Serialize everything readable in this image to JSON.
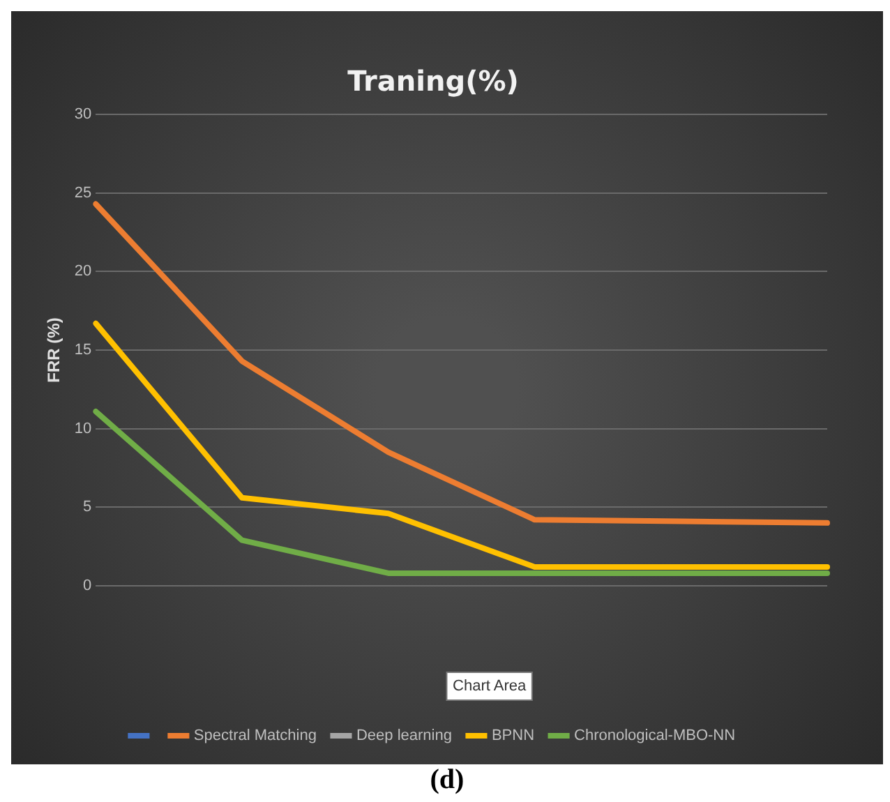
{
  "chart_data": {
    "type": "line",
    "title": "Traning(%)",
    "ylabel": "FRR (%)",
    "categories": [
      null,
      null,
      null,
      null,
      null,
      null
    ],
    "series": [
      {
        "color": "#4472c4",
        "values": [
          null,
          null,
          null,
          null,
          null,
          null
        ]
      },
      {
        "name": "Spectral Matching",
        "color": "#ed7d31",
        "values": [
          24.3,
          14.3,
          8.5,
          4.2,
          4.1,
          4.0
        ]
      },
      {
        "name": "Deep learning",
        "color": "#a5a5a5",
        "values": [
          null,
          null,
          null,
          null,
          null,
          null
        ]
      },
      {
        "name": "BPNN",
        "color": "#ffc000",
        "values": [
          16.7,
          5.6,
          4.6,
          1.2,
          1.2,
          1.2
        ]
      },
      {
        "name": "Chronological-MBO-NN",
        "color": "#70ad47",
        "values": [
          11.1,
          2.9,
          0.8,
          0.8,
          0.8,
          0.8
        ]
      }
    ],
    "ylim": [
      0,
      30
    ],
    "yticks": [
      0,
      5,
      10,
      15,
      20,
      25,
      30
    ],
    "grid": "y",
    "legend": "bottom",
    "marker": "none",
    "line_style": "solid",
    "tick_labels": "y",
    "annotations": [
      "Chart Area",
      "(d)"
    ]
  }
}
